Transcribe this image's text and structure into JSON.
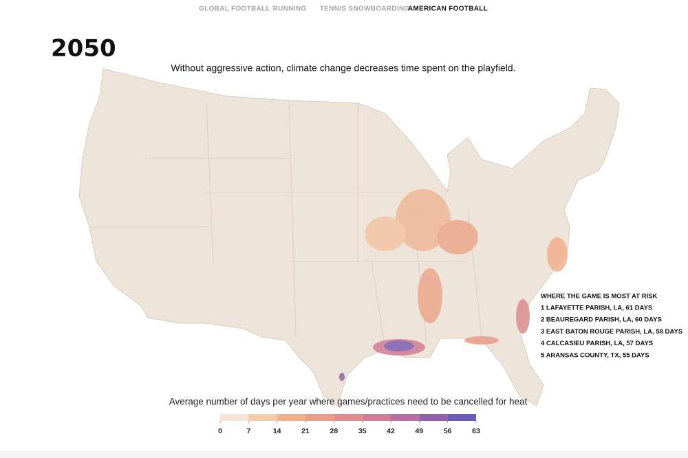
{
  "nav": [
    "GLOBAL FOOTBALL",
    "RUNNING",
    "TENNIS",
    "SNOWBOARDING",
    "AMERICAN FOOTBALL"
  ],
  "nav_active": 4,
  "year": "2050",
  "subtitle": "Without aggressive action, climate change decreases time spent on the playfield.",
  "risk": {
    "title": "WHERE THE GAME IS MOST AT RISK",
    "items": [
      "1 LAFAYETTE PARISH, LA, 61 DAYS",
      "2 BEAUREGARD PARISH, LA, 60 DAYS",
      "3 EAST BATON ROUGE PARISH, LA, 58 DAYS",
      "4 CALCASIEU PARISH, LA, 57 DAYS",
      "5 ARANSAS COUNTY, TX, 55 DAYS"
    ]
  },
  "legend": {
    "title": "Average number of days per year where games/practices need to be cancelled for heat",
    "ticks": [
      0,
      7,
      14,
      21,
      28,
      35,
      42,
      49,
      56,
      63
    ],
    "colors": [
      "#f4e6d9",
      "#f6cbab",
      "#f0b08c",
      "#e99c86",
      "#de8e8e",
      "#d07e96",
      "#b86e9e",
      "#9262a9",
      "#6b5bba"
    ]
  }
}
